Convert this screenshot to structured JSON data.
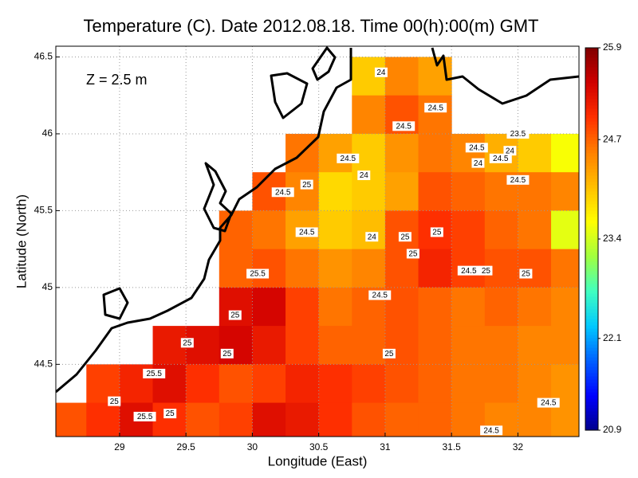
{
  "chart_data": {
    "type": "heatmap",
    "title": "Temperature (C). Date 2012.08.18. Time 00(h):00(m) GMT",
    "annotation": "Z = 2.5 m",
    "xlabel": "Longitude (East)",
    "ylabel": "Latitude (North)",
    "xlim": [
      28.52,
      32.46
    ],
    "ylim": [
      44.03,
      46.57
    ],
    "xticks": [
      29,
      29.5,
      30,
      30.5,
      31,
      31.5,
      32
    ],
    "yticks": [
      44.5,
      45,
      45.5,
      46,
      46.5
    ],
    "grid": true,
    "clim": [
      20.9,
      25.9
    ],
    "cticks": [
      20.9,
      22.1,
      23.4,
      24.7,
      25.9
    ],
    "colormap": [
      "#00008b",
      "#0000ff",
      "#0060ff",
      "#00c8ff",
      "#40ffc0",
      "#a0ff40",
      "#ffff00",
      "#ffc000",
      "#ff8000",
      "#ff3000",
      "#d00000",
      "#800000"
    ],
    "grid_data": {
      "lon": [
        28.625,
        28.875,
        29.125,
        29.375,
        29.625,
        29.875,
        30.125,
        30.375,
        30.625,
        30.875,
        31.125,
        31.375,
        31.625,
        31.875,
        32.125,
        32.375
      ],
      "lat": [
        46.375,
        46.125,
        45.875,
        45.625,
        45.375,
        45.125,
        44.875,
        44.625,
        44.375,
        44.125
      ],
      "values": [
        [
          null,
          null,
          null,
          null,
          null,
          null,
          null,
          null,
          null,
          24.0,
          24.5,
          24.3,
          null,
          null,
          null,
          null
        ],
        [
          null,
          null,
          null,
          null,
          null,
          null,
          null,
          null,
          null,
          24.5,
          24.8,
          24.6,
          null,
          null,
          null,
          null
        ],
        [
          null,
          null,
          null,
          null,
          null,
          null,
          null,
          24.6,
          24.3,
          24.0,
          24.4,
          24.6,
          24.5,
          24.2,
          24.0,
          23.6
        ],
        [
          null,
          null,
          null,
          null,
          null,
          null,
          24.8,
          24.5,
          23.9,
          24.0,
          24.3,
          24.8,
          24.7,
          24.6,
          24.6,
          24.5
        ],
        [
          null,
          null,
          null,
          null,
          null,
          24.7,
          24.6,
          24.3,
          24.0,
          24.1,
          24.8,
          25.0,
          24.9,
          24.7,
          24.6,
          23.5
        ],
        [
          null,
          null,
          null,
          null,
          null,
          24.7,
          24.8,
          24.6,
          24.4,
          24.5,
          24.8,
          25.1,
          24.9,
          24.8,
          24.8,
          24.6
        ],
        [
          null,
          null,
          null,
          null,
          null,
          25.3,
          25.4,
          24.9,
          24.6,
          24.7,
          24.8,
          24.7,
          24.6,
          24.7,
          24.6,
          24.5
        ],
        [
          null,
          null,
          null,
          25.2,
          25.3,
          25.4,
          25.2,
          24.9,
          24.7,
          24.7,
          24.8,
          24.7,
          24.6,
          24.6,
          24.5,
          24.5
        ],
        [
          null,
          24.9,
          25.1,
          25.3,
          25.0,
          24.8,
          24.9,
          25.1,
          25.0,
          24.9,
          24.8,
          24.7,
          24.6,
          24.6,
          24.5,
          24.4
        ],
        [
          24.8,
          25.0,
          25.3,
          25.0,
          24.8,
          24.9,
          25.3,
          25.2,
          25.0,
          24.8,
          24.7,
          24.7,
          24.6,
          24.5,
          24.5,
          24.4
        ]
      ]
    },
    "contour_labels": [
      {
        "lon": 30.97,
        "lat": 46.4,
        "value": 24
      },
      {
        "lon": 31.38,
        "lat": 46.17,
        "value": 24.5
      },
      {
        "lon": 31.14,
        "lat": 46.05,
        "value": 24.5
      },
      {
        "lon": 32.0,
        "lat": 46.0,
        "value": 23.5
      },
      {
        "lon": 31.69,
        "lat": 45.91,
        "value": 24.5
      },
      {
        "lon": 31.94,
        "lat": 45.89,
        "value": 24
      },
      {
        "lon": 31.7,
        "lat": 45.81,
        "value": 24
      },
      {
        "lon": 31.87,
        "lat": 45.84,
        "value": 24.5
      },
      {
        "lon": 30.72,
        "lat": 45.84,
        "value": 24.5
      },
      {
        "lon": 30.41,
        "lat": 45.67,
        "value": 25
      },
      {
        "lon": 30.23,
        "lat": 45.62,
        "value": 24.5
      },
      {
        "lon": 30.84,
        "lat": 45.73,
        "value": 24
      },
      {
        "lon": 32.0,
        "lat": 45.7,
        "value": 24.5
      },
      {
        "lon": 30.41,
        "lat": 45.36,
        "value": 24.5
      },
      {
        "lon": 30.9,
        "lat": 45.33,
        "value": 24
      },
      {
        "lon": 31.15,
        "lat": 45.33,
        "value": 25
      },
      {
        "lon": 31.39,
        "lat": 45.36,
        "value": 25
      },
      {
        "lon": 31.21,
        "lat": 45.22,
        "value": 25
      },
      {
        "lon": 31.63,
        "lat": 45.11,
        "value": 24.5
      },
      {
        "lon": 31.76,
        "lat": 45.11,
        "value": 25
      },
      {
        "lon": 32.06,
        "lat": 45.09,
        "value": 25
      },
      {
        "lon": 30.04,
        "lat": 45.09,
        "value": 25.5
      },
      {
        "lon": 30.96,
        "lat": 44.95,
        "value": 24.5
      },
      {
        "lon": 29.87,
        "lat": 44.82,
        "value": 25
      },
      {
        "lon": 29.51,
        "lat": 44.64,
        "value": 25
      },
      {
        "lon": 29.81,
        "lat": 44.57,
        "value": 25
      },
      {
        "lon": 31.03,
        "lat": 44.57,
        "value": 25
      },
      {
        "lon": 29.26,
        "lat": 44.44,
        "value": 25.5
      },
      {
        "lon": 28.96,
        "lat": 44.26,
        "value": 25
      },
      {
        "lon": 29.19,
        "lat": 44.16,
        "value": 25.5
      },
      {
        "lon": 29.38,
        "lat": 44.18,
        "value": 25
      },
      {
        "lon": 32.23,
        "lat": 44.25,
        "value": 24.5
      },
      {
        "lon": 31.8,
        "lat": 44.07,
        "value": 24.5
      }
    ]
  }
}
